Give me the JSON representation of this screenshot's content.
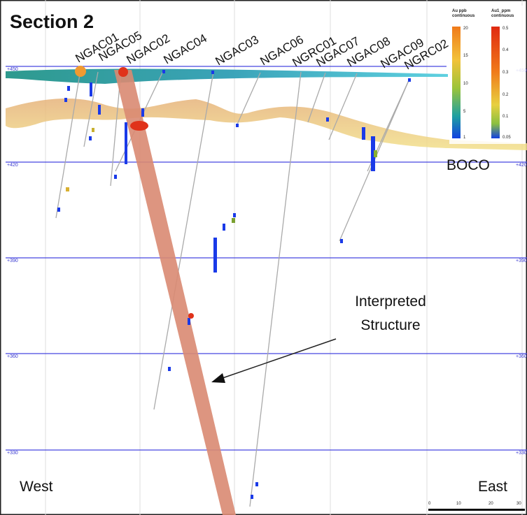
{
  "title": "Section 2",
  "drill_holes": [
    "NGAC01",
    "NGAC05",
    "NGAC02",
    "NGAC04",
    "NGAC03",
    "NGAC06",
    "NGRC01",
    "NGAC07",
    "NGAC08",
    "NGAC09",
    "NGRC02"
  ],
  "elevations": [
    "+450",
    "+420",
    "+390",
    "+360",
    "+330"
  ],
  "annotations": {
    "boco": "BOCO",
    "interpreted_structure": [
      "Interpreted",
      "Structure"
    ],
    "west": "West",
    "east": "East"
  },
  "legend": [
    {
      "title": [
        "Au ppb",
        "continuous"
      ],
      "ticks": [
        "20",
        "15",
        "10",
        "5",
        "1"
      ]
    },
    {
      "title": [
        "Au1_ppm",
        "continuous"
      ],
      "ticks": [
        "0.5",
        "0.4",
        "0.3",
        "0.2",
        "0.1",
        "0.05"
      ]
    }
  ],
  "scale_bar": [
    "0",
    "10",
    "20",
    "30"
  ]
}
